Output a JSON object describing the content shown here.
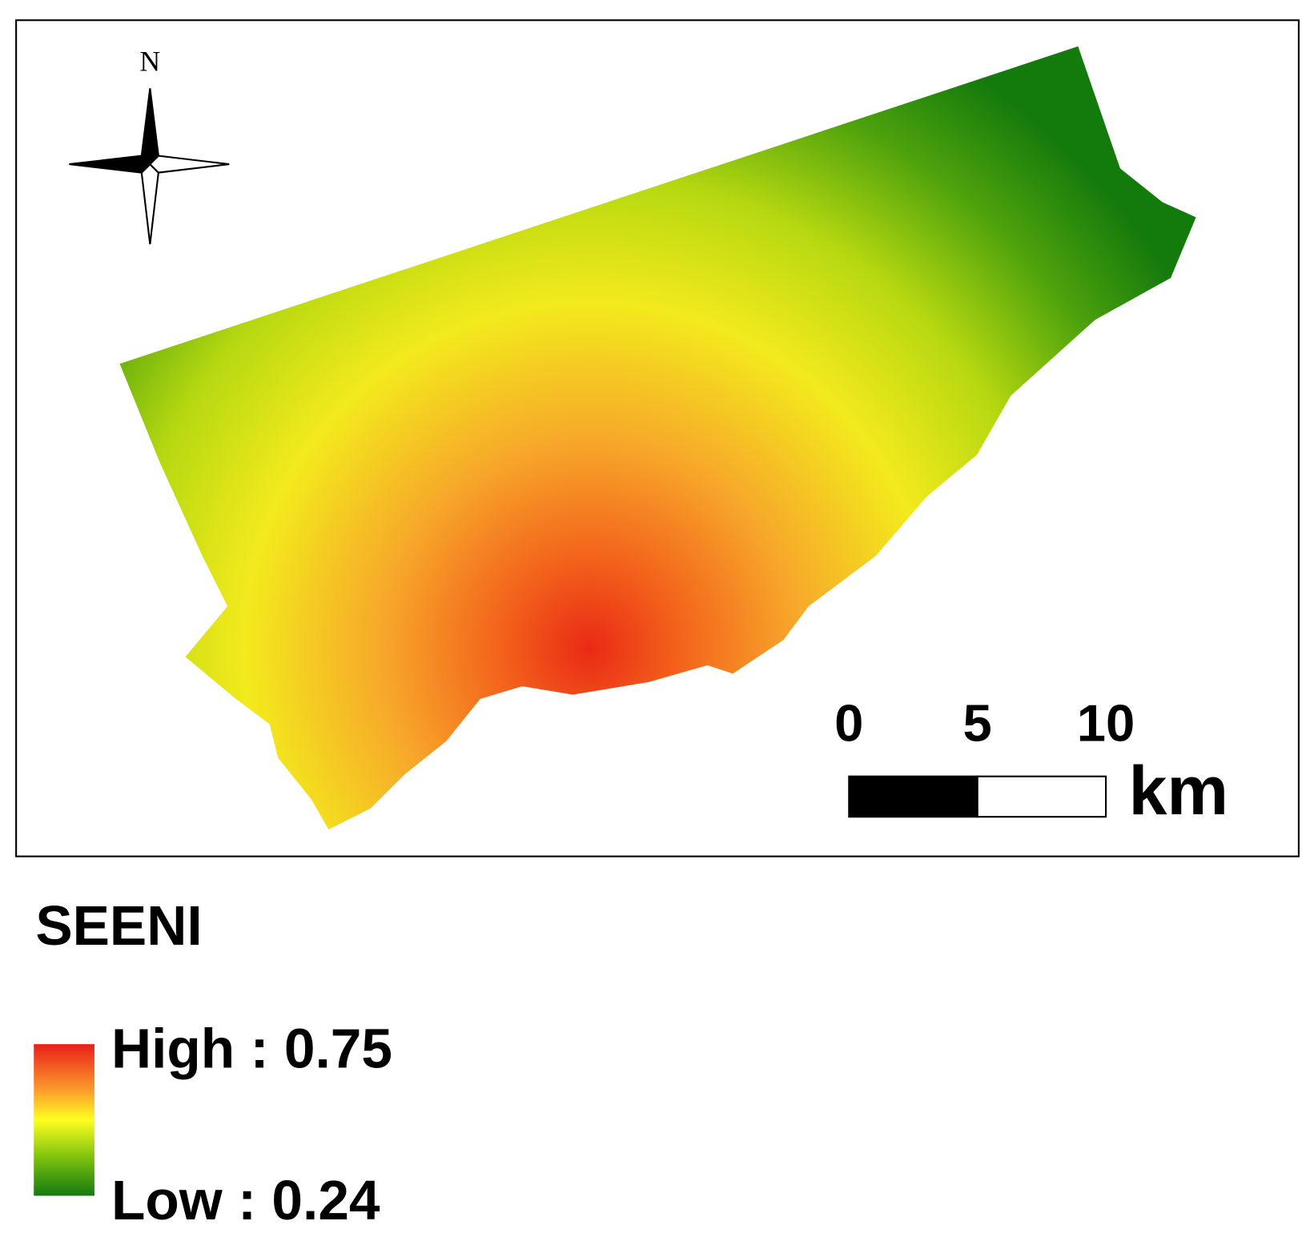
{
  "north_arrow": {
    "label": "N"
  },
  "scale_bar": {
    "ticks": [
      0,
      5,
      10
    ],
    "unit": "km"
  },
  "legend": {
    "title": "SEENI",
    "high": "High : 0.75",
    "low": "Low : 0.24"
  }
}
